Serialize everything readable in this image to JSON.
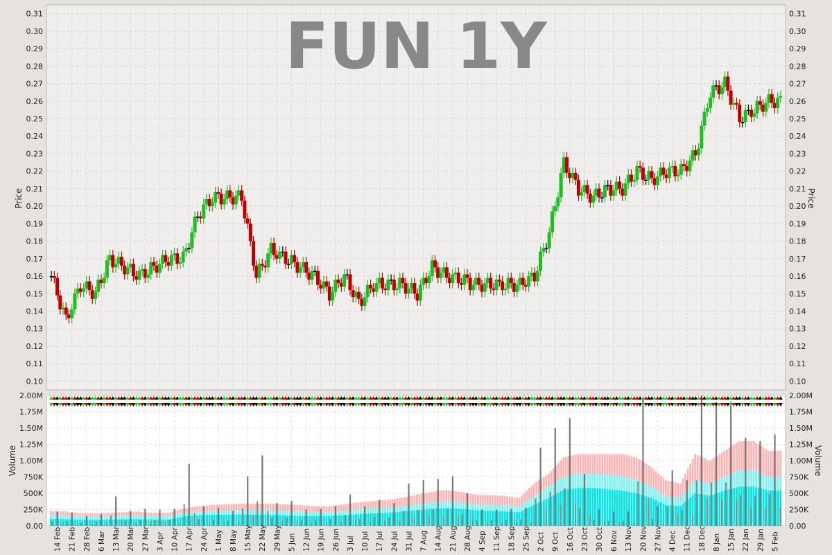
{
  "chart_data": [
    {
      "type": "candlestick",
      "title": "FUN 1Y",
      "ylabel": "Price",
      "ylim": [
        0.095,
        0.315
      ],
      "y_ticks": [
        "0.10",
        "0.11",
        "0.12",
        "0.13",
        "0.14",
        "0.15",
        "0.16",
        "0.17",
        "0.18",
        "0.19",
        "0.20",
        "0.21",
        "0.22",
        "0.23",
        "0.24",
        "0.25",
        "0.26",
        "0.27",
        "0.28",
        "0.29",
        "0.30",
        "0.31"
      ],
      "grid": true,
      "colors": {
        "up": "#22bb22",
        "down": "#bb0000",
        "unchanged": "#000000",
        "background": "#efeeec",
        "grid": "#d5d5d5"
      },
      "x_ticks": [
        "14 Feb",
        "21 Feb",
        "28 Feb",
        "6 Mar",
        "13 Mar",
        "20 Mar",
        "27 Mar",
        "3 Apr",
        "10 Apr",
        "17 Apr",
        "24 Apr",
        "1 May",
        "8 May",
        "15 May",
        "22 May",
        "29 May",
        "5 Jun",
        "12 Jun",
        "19 Jun",
        "26 Jun",
        "3 Jul",
        "10 Jul",
        "17 Jul",
        "24 Jul",
        "31 Jul",
        "7 Aug",
        "14 Aug",
        "21 Aug",
        "28 Aug",
        "4 Sep",
        "11 Sep",
        "18 Sep",
        "25 Sep",
        "2 Oct",
        "9 Oct",
        "16 Oct",
        "23 Oct",
        "30 Oct",
        "6 Nov",
        "13 Nov",
        "20 Nov",
        "27 Nov",
        "4 Dec",
        "11 Dec",
        "18 Dec",
        "8 Jan",
        "15 Jan",
        "22 Jan",
        "29 Jan",
        "5 Feb"
      ],
      "close_path": [
        [
          "14 Feb",
          0.16
        ],
        [
          "21 Feb",
          0.135
        ],
        [
          "28 Feb",
          0.155
        ],
        [
          "6 Mar",
          0.15
        ],
        [
          "13 Mar",
          0.17
        ],
        [
          "20 Mar",
          0.165
        ],
        [
          "27 Mar",
          0.16
        ],
        [
          "3 Apr",
          0.165
        ],
        [
          "10 Apr",
          0.17
        ],
        [
          "17 Apr",
          0.17
        ],
        [
          "24 Apr",
          0.195
        ],
        [
          "1 May",
          0.205
        ],
        [
          "8 May",
          0.205
        ],
        [
          "15 May",
          0.205
        ],
        [
          "22 May",
          0.16
        ],
        [
          "29 May",
          0.175
        ],
        [
          "5 Jun",
          0.17
        ],
        [
          "12 Jun",
          0.165
        ],
        [
          "19 Jun",
          0.16
        ],
        [
          "26 Jun",
          0.15
        ],
        [
          "3 Jul",
          0.16
        ],
        [
          "10 Jul",
          0.145
        ],
        [
          "17 Jul",
          0.155
        ],
        [
          "24 Jul",
          0.155
        ],
        [
          "31 Jul",
          0.155
        ],
        [
          "7 Aug",
          0.15
        ],
        [
          "14 Aug",
          0.165
        ],
        [
          "21 Aug",
          0.16
        ],
        [
          "28 Aug",
          0.158
        ],
        [
          "4 Sep",
          0.155
        ],
        [
          "11 Sep",
          0.155
        ],
        [
          "18 Sep",
          0.155
        ],
        [
          "25 Sep",
          0.155
        ],
        [
          "2 Oct",
          0.16
        ],
        [
          "9 Oct",
          0.185
        ],
        [
          "16 Oct",
          0.225
        ],
        [
          "23 Oct",
          0.21
        ],
        [
          "30 Oct",
          0.205
        ],
        [
          "6 Nov",
          0.21
        ],
        [
          "13 Nov",
          0.21
        ],
        [
          "20 Nov",
          0.22
        ],
        [
          "27 Nov",
          0.215
        ],
        [
          "4 Dec",
          0.22
        ],
        [
          "11 Dec",
          0.22
        ],
        [
          "18 Dec",
          0.23
        ],
        [
          "8 Jan",
          0.265
        ],
        [
          "15 Jan",
          0.27
        ],
        [
          "22 Jan",
          0.25
        ],
        [
          "29 Jan",
          0.255
        ],
        [
          "5 Feb",
          0.26
        ]
      ]
    },
    {
      "type": "bar",
      "ylabel": "Volume",
      "ylim": [
        0,
        2000000
      ],
      "y_ticks": [
        "0.00",
        "250K",
        "500K",
        "750K",
        "1.00M",
        "1.25M",
        "1.50M",
        "1.75M",
        "2.00M"
      ],
      "series": [
        {
          "values": [
            220000,
            200000,
            150000,
            180000,
            450000,
            230000,
            260000,
            250000,
            260000,
            950000,
            300000,
            280000,
            230000,
            760000,
            1080000,
            350000,
            380000,
            250000,
            260000,
            300000,
            480000,
            300000,
            400000,
            350000,
            650000,
            700000,
            720000,
            760000,
            500000,
            250000,
            250000,
            260000,
            280000,
            1200000,
            1500000,
            1650000,
            800000,
            250000,
            220000,
            220000,
            1950000,
            300000,
            850000,
            700000,
            2000000,
            1900000,
            1900000,
            1350000,
            1300000,
            1400000
          ]
        }
      ],
      "band_levels": [
        {
          "name": "pink",
          "color": "#ffb3b3",
          "values": [
            230000,
            220000,
            200000,
            190000,
            200000,
            210000,
            220000,
            200000,
            200000,
            260000,
            300000,
            320000,
            330000,
            340000,
            340000,
            340000,
            330000,
            320000,
            300000,
            300000,
            330000,
            360000,
            380000,
            400000,
            430000,
            480000,
            520000,
            550000,
            520000,
            480000,
            470000,
            460000,
            430000,
            650000,
            800000,
            1050000,
            1100000,
            1100000,
            1100000,
            1100000,
            1050000,
            900000,
            700000,
            650000,
            1100000,
            1000000,
            1150000,
            1300000,
            1300000,
            1150000
          ]
        },
        {
          "name": "cyan-light",
          "color": "#7ff5f5",
          "values": [
            170000,
            160000,
            150000,
            140000,
            150000,
            160000,
            160000,
            150000,
            150000,
            200000,
            220000,
            230000,
            230000,
            240000,
            240000,
            240000,
            230000,
            220000,
            210000,
            210000,
            230000,
            250000,
            270000,
            280000,
            300000,
            330000,
            360000,
            380000,
            360000,
            330000,
            320000,
            310000,
            300000,
            450000,
            600000,
            750000,
            800000,
            800000,
            780000,
            760000,
            700000,
            600000,
            450000,
            430000,
            700000,
            650000,
            750000,
            850000,
            850000,
            750000
          ]
        },
        {
          "name": "cyan",
          "color": "#00e5e5",
          "values": [
            110000,
            100000,
            95000,
            90000,
            95000,
            100000,
            100000,
            95000,
            95000,
            140000,
            160000,
            170000,
            170000,
            170000,
            170000,
            170000,
            160000,
            150000,
            150000,
            150000,
            160000,
            180000,
            190000,
            200000,
            220000,
            240000,
            260000,
            270000,
            260000,
            240000,
            230000,
            220000,
            210000,
            320000,
            430000,
            550000,
            580000,
            580000,
            560000,
            540000,
            500000,
            430000,
            320000,
            300000,
            500000,
            460000,
            540000,
            600000,
            600000,
            540000
          ]
        }
      ]
    }
  ],
  "price_axis_label": "Price",
  "volume_axis_label": "Volume"
}
